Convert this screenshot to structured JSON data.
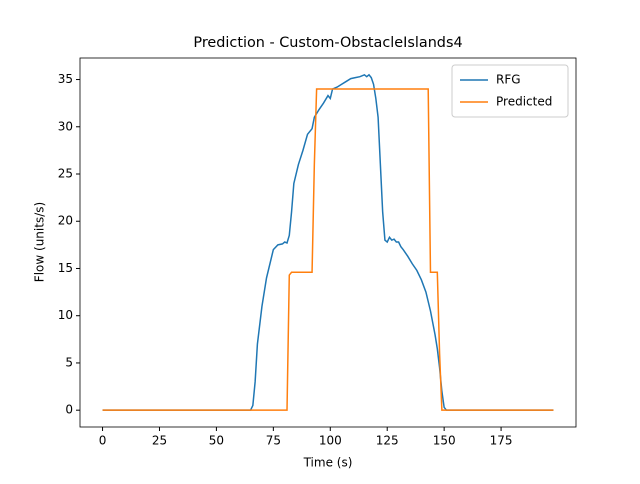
{
  "chart_data": {
    "type": "line",
    "title": "Prediction - Custom-ObstacleIslands4",
    "x_label": "Time (s)",
    "y_label": "Flow (units/s)",
    "xlim": [
      -9.9,
      207.9
    ],
    "ylim": [
      -1.78,
      37.28
    ],
    "xticks": [
      0,
      25,
      50,
      75,
      100,
      125,
      150,
      175
    ],
    "yticks": [
      0,
      5,
      10,
      15,
      20,
      25,
      30,
      35
    ],
    "legend": "upper right",
    "series": [
      {
        "name": "RFG",
        "color": "#1f77b4",
        "x": [
          0,
          65,
          66,
          67,
          68,
          70,
          72,
          74,
          75,
          77,
          79,
          80,
          81,
          82,
          83,
          84,
          86,
          88,
          90,
          92,
          93,
          95,
          97,
          99,
          100,
          101,
          103,
          105,
          107,
          109,
          111,
          113,
          115,
          116,
          117,
          118,
          119,
          120,
          121,
          122,
          123,
          124,
          125,
          126,
          127,
          128,
          129,
          130,
          131,
          132,
          134,
          136,
          138,
          140,
          142,
          144,
          146,
          147,
          148,
          149,
          150,
          151,
          198
        ],
        "values": [
          0,
          0,
          0.5,
          3,
          7,
          11,
          14,
          16,
          17,
          17.5,
          17.6,
          17.8,
          17.7,
          18.5,
          21,
          24,
          26,
          27.5,
          29.2,
          29.8,
          31,
          31.8,
          32.5,
          33.3,
          33,
          34,
          34.2,
          34.5,
          34.8,
          35.1,
          35.2,
          35.3,
          35.5,
          35.3,
          35.5,
          35.2,
          34.5,
          33,
          31,
          26,
          21,
          18,
          17.8,
          18.3,
          18,
          18.1,
          17.8,
          17.8,
          17.3,
          17,
          16.3,
          15.5,
          14.8,
          13.8,
          12.5,
          10.5,
          8,
          6.5,
          4.5,
          2,
          0.3,
          0,
          0
        ]
      },
      {
        "name": "Predicted",
        "color": "#ff7f0e",
        "x": [
          0,
          81,
          82,
          83,
          92,
          93,
          94,
          143,
          144,
          147,
          148,
          149,
          198
        ],
        "values": [
          0,
          0,
          14.3,
          14.6,
          14.6,
          26,
          34,
          34,
          14.6,
          14.6,
          6,
          0,
          0
        ]
      }
    ]
  }
}
